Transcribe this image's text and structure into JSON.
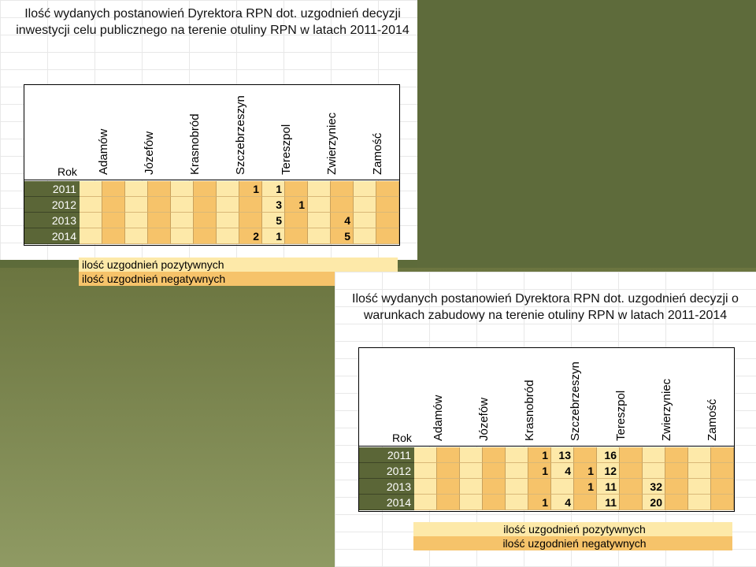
{
  "colors": {
    "positive": "#fde9a9",
    "negative": "#f6c36a",
    "year_bg": "#5b6637"
  },
  "table1": {
    "title": "Ilość wydanych postanowień Dyrektora RPN dot. uzgodnień decyzji inwestycji celu publicznego na terenie otuliny RPN w latach 2011-2014",
    "rok_label": "Rok",
    "columns": [
      "Adamów",
      "Józefów",
      "Krasnobród",
      "Szczebrzeszyn",
      "Tereszpol",
      "Zwierzyniec",
      "Zamość"
    ],
    "rows": [
      {
        "year": "2011",
        "cells": [
          [
            "",
            ""
          ],
          [
            "",
            ""
          ],
          [
            "",
            ""
          ],
          [
            "",
            "1"
          ],
          [
            "1",
            ""
          ],
          [
            "",
            ""
          ],
          [
            "",
            ""
          ]
        ]
      },
      {
        "year": "2012",
        "cells": [
          [
            "",
            ""
          ],
          [
            "",
            ""
          ],
          [
            "",
            ""
          ],
          [
            "",
            ""
          ],
          [
            "3",
            "1"
          ],
          [
            "",
            ""
          ],
          [
            "",
            ""
          ]
        ]
      },
      {
        "year": "2013",
        "cells": [
          [
            "",
            ""
          ],
          [
            "",
            ""
          ],
          [
            "",
            ""
          ],
          [
            "",
            ""
          ],
          [
            "5",
            ""
          ],
          [
            "",
            "4"
          ],
          [
            "",
            ""
          ]
        ]
      },
      {
        "year": "2014",
        "cells": [
          [
            "",
            ""
          ],
          [
            "",
            ""
          ],
          [
            "",
            ""
          ],
          [
            "",
            "2"
          ],
          [
            "1",
            ""
          ],
          [
            "",
            "5"
          ],
          [
            "",
            ""
          ]
        ]
      }
    ],
    "legend": {
      "positive": "ilość uzgodnień pozytywnych",
      "negative": "ilość uzgodnień negatywnych"
    }
  },
  "table2": {
    "title": "Ilość wydanych postanowień Dyrektora RPN dot. uzgodnień decyzji o warunkach zabudowy na terenie otuliny RPN w latach 2011-2014",
    "rok_label": "Rok",
    "columns": [
      "Adamów",
      "Józefów",
      "Krasnobród",
      "Szczebrzeszyn",
      "Tereszpol",
      "Zwierzyniec",
      "Zamość"
    ],
    "rows": [
      {
        "year": "2011",
        "cells": [
          [
            "",
            ""
          ],
          [
            "",
            ""
          ],
          [
            "",
            "1"
          ],
          [
            "13",
            ""
          ],
          [
            "16",
            ""
          ],
          [
            "",
            ""
          ],
          [
            "",
            ""
          ]
        ]
      },
      {
        "year": "2012",
        "cells": [
          [
            "",
            ""
          ],
          [
            "",
            ""
          ],
          [
            "",
            "1"
          ],
          [
            "4",
            "1"
          ],
          [
            "12",
            ""
          ],
          [
            "",
            ""
          ],
          [
            "",
            ""
          ]
        ]
      },
      {
        "year": "2013",
        "cells": [
          [
            "",
            ""
          ],
          [
            "",
            ""
          ],
          [
            "",
            ""
          ],
          [
            "",
            "1"
          ],
          [
            "11",
            ""
          ],
          [
            "32",
            ""
          ],
          [
            "",
            ""
          ]
        ]
      },
      {
        "year": "2014",
        "cells": [
          [
            "",
            ""
          ],
          [
            "",
            ""
          ],
          [
            "",
            "1"
          ],
          [
            "4",
            ""
          ],
          [
            "11",
            ""
          ],
          [
            "20",
            ""
          ],
          [
            "",
            ""
          ]
        ]
      }
    ],
    "legend": {
      "positive": "ilość uzgodnień pozytywnych",
      "negative": "ilość uzgodnień negatywnych"
    }
  }
}
